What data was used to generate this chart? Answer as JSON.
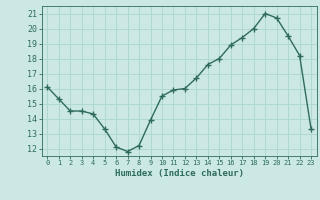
{
  "x": [
    0,
    1,
    2,
    3,
    4,
    5,
    6,
    7,
    8,
    9,
    10,
    11,
    12,
    13,
    14,
    15,
    16,
    17,
    18,
    19,
    20,
    21,
    22,
    23
  ],
  "y": [
    16.1,
    15.3,
    14.5,
    14.5,
    14.3,
    13.3,
    12.1,
    11.8,
    12.2,
    13.9,
    15.5,
    15.9,
    16.0,
    16.7,
    17.6,
    18.0,
    18.9,
    19.4,
    20.0,
    21.0,
    20.7,
    19.5,
    18.2,
    13.3
  ],
  "xlabel": "Humidex (Indice chaleur)",
  "ylim": [
    11.5,
    21.5
  ],
  "xlim": [
    -0.5,
    23.5
  ],
  "yticks": [
    12,
    13,
    14,
    15,
    16,
    17,
    18,
    19,
    20,
    21
  ],
  "xticks": [
    0,
    1,
    2,
    3,
    4,
    5,
    6,
    7,
    8,
    9,
    10,
    11,
    12,
    13,
    14,
    15,
    16,
    17,
    18,
    19,
    20,
    21,
    22,
    23
  ],
  "line_color": "#2e6b5e",
  "marker_color": "#2e6b5e",
  "bg_color": "#cce8e4",
  "grid_color": "#b0d8d2",
  "axis_color": "#2e6b5e",
  "tick_label_color": "#2e6b5e",
  "xlabel_color": "#2e6b5e",
  "marker": "+",
  "marker_size": 4,
  "line_width": 1.0
}
